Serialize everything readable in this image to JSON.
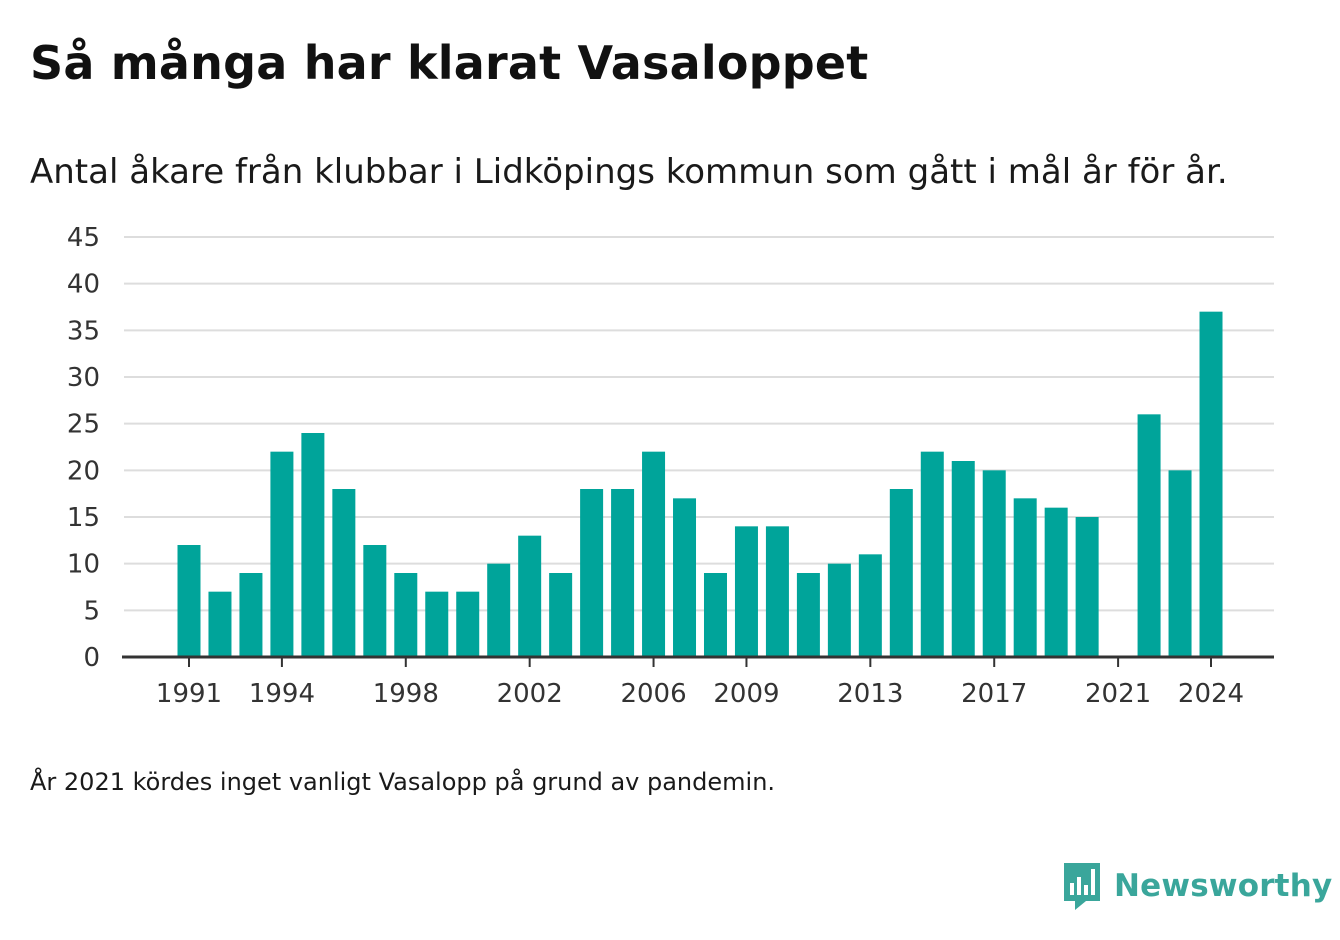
{
  "title": "Så många har klarat Vasaloppet",
  "subtitle": "Antal åkare från klubbar i Lidköpings kommun som gått i mål år för år.",
  "footnote": "År 2021 kördes inget vanligt Vasalopp på grund av pandemin.",
  "brand": {
    "name": "Newsworthy",
    "icon": "newsworthy-logo-icon",
    "color": "#3aa69b"
  },
  "colors": {
    "bar": "#00a49a",
    "grid": "#dddddd",
    "axis": "#333333"
  },
  "chart_data": {
    "type": "bar",
    "categories": [
      1991,
      1992,
      1993,
      1994,
      1995,
      1996,
      1997,
      1998,
      1999,
      2000,
      2001,
      2002,
      2003,
      2004,
      2005,
      2006,
      2007,
      2008,
      2009,
      2010,
      2011,
      2012,
      2013,
      2014,
      2015,
      2016,
      2017,
      2018,
      2019,
      2020,
      2021,
      2022,
      2023,
      2024
    ],
    "values": [
      12,
      7,
      9,
      22,
      24,
      18,
      12,
      9,
      7,
      7,
      10,
      13,
      9,
      18,
      18,
      22,
      17,
      9,
      14,
      14,
      9,
      10,
      11,
      18,
      22,
      21,
      20,
      17,
      16,
      15,
      null,
      26,
      20,
      37
    ],
    "x_tick_labels": [
      "1991",
      "1994",
      "1998",
      "2002",
      "2006",
      "2009",
      "2013",
      "2017",
      "2021",
      "2024"
    ],
    "y_ticks": [
      0,
      5,
      10,
      15,
      20,
      25,
      30,
      35,
      40,
      45
    ],
    "ylim": [
      0,
      45
    ],
    "grid": true,
    "legend": "none"
  }
}
